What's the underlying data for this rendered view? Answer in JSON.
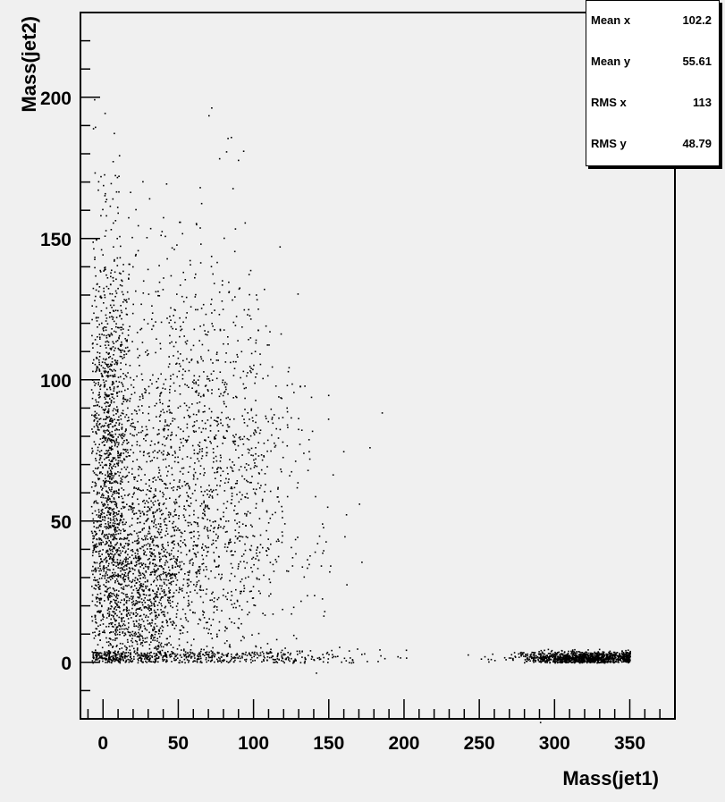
{
  "chart_data": {
    "type": "scatter",
    "title": "",
    "xlabel": "Mass(jet1)",
    "ylabel": "Mass(jet2)",
    "xlim": [
      -15,
      380
    ],
    "ylim": [
      -20,
      230
    ],
    "x_ticks": [
      0,
      50,
      100,
      150,
      200,
      250,
      300,
      350
    ],
    "y_ticks": [
      0,
      50,
      100,
      150,
      200
    ],
    "grid": false,
    "marker_color": "#000000",
    "background_color": "#f0f0f0",
    "stats": [
      {
        "label": "Mean x",
        "value": "102.2"
      },
      {
        "label": "Mean y",
        "value": "55.61"
      },
      {
        "label": "RMS x",
        "value": "113"
      },
      {
        "label": "RMS y",
        "value": "48.79"
      }
    ],
    "clusters": [
      {
        "description_points": 1200,
        "x_mean": 5,
        "x_sd": 6,
        "y_mean": 70,
        "y_sd": 45,
        "ymin": 0,
        "ymax": 210
      },
      {
        "description_points": 2400,
        "x_mean": 55,
        "x_sd": 40,
        "y_mean": 60,
        "y_sd": 45,
        "ymin": 0,
        "ymax": 200
      },
      {
        "description_points": 900,
        "x_mean": 25,
        "x_sd": 15,
        "y_mean": 25,
        "y_sd": 15,
        "ymin": 0,
        "ymax": 80
      },
      {
        "description_points": 1100,
        "x_mean": 320,
        "x_sd": 22,
        "y_mean": 1.5,
        "y_sd": 1.2,
        "xmin": 200,
        "xmax": 350,
        "ymin": 0,
        "ymax": 5
      },
      {
        "description_points": 200,
        "x_mean": 110,
        "x_sd": 50,
        "y_mean": 2,
        "y_sd": 1.5,
        "xmin": 20,
        "xmax": 230,
        "ymin": 0,
        "ymax": 6
      }
    ]
  }
}
